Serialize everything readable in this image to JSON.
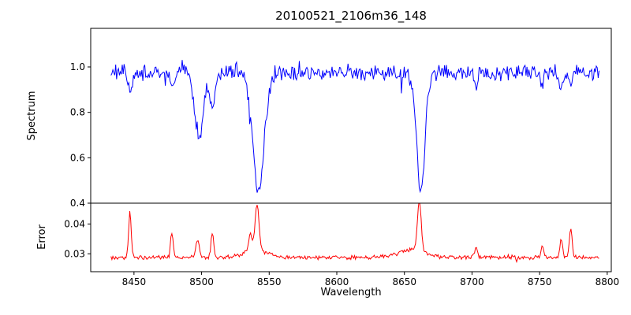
{
  "figure_title": "20100521_2106m36_148",
  "colors": {
    "background": "#ffffff",
    "axes": "#000000",
    "spectrum_line": "#0000ff",
    "error_line": "#ff0000",
    "text": "#000000"
  },
  "chart_data": [
    {
      "type": "line",
      "series_name": "spectrum",
      "title": "20100521_2106m36_148",
      "ylabel": "Spectrum",
      "color": "#0000ff",
      "grid": false,
      "legend": "none",
      "xlim": [
        8418,
        8803
      ],
      "ylim": [
        0.4,
        1.17
      ],
      "yticks": [
        0.4,
        0.6,
        0.8,
        1.0
      ],
      "yticklabels": [
        "0.4",
        "0.6",
        "0.8",
        "1.0"
      ],
      "x_range": [
        8433,
        8794
      ],
      "baseline": 0.975,
      "noise_amplitude": 0.042,
      "absorption_lines": [
        {
          "center": 8447,
          "depth": 0.1,
          "sigma": 1.2
        },
        {
          "center": 8478,
          "depth": 0.07,
          "sigma": 1.2
        },
        {
          "center": 8498,
          "depth": 0.3,
          "sigma": 3.0
        },
        {
          "center": 8508,
          "depth": 0.17,
          "sigma": 2.0
        },
        {
          "center": 8542,
          "depth": 0.52,
          "sigma": 4.2
        },
        {
          "center": 8662,
          "depth": 0.53,
          "sigma": 3.0
        },
        {
          "center": 8703,
          "depth": 0.06,
          "sigma": 1.2
        },
        {
          "center": 8752,
          "depth": 0.06,
          "sigma": 1.0
        },
        {
          "center": 8766,
          "depth": 0.08,
          "sigma": 1.2
        },
        {
          "center": 8773,
          "depth": 0.07,
          "sigma": 1.2
        }
      ]
    },
    {
      "type": "line",
      "series_name": "error",
      "ylabel": "Error",
      "xlabel": "Wavelength",
      "color": "#ff0000",
      "grid": false,
      "legend": "none",
      "xlim": [
        8418,
        8803
      ],
      "ylim": [
        0.024,
        0.047
      ],
      "yticks": [
        0.03,
        0.04
      ],
      "yticklabels": [
        "0.03",
        "0.04"
      ],
      "xticks": [
        8450,
        8500,
        8550,
        8600,
        8650,
        8700,
        8750,
        8800
      ],
      "xticklabels": [
        "8450",
        "8500",
        "8550",
        "8600",
        "8650",
        "8700",
        "8750",
        "8800"
      ],
      "x_range": [
        8433,
        8794
      ],
      "baseline": 0.0288,
      "noise_amplitude": 0.0008,
      "spikes": [
        {
          "center": 8447,
          "peak": 0.0435,
          "sigma": 1.0
        },
        {
          "center": 8478,
          "peak": 0.0368,
          "sigma": 1.0
        },
        {
          "center": 8497,
          "peak": 0.035,
          "sigma": 1.2
        },
        {
          "center": 8508,
          "peak": 0.0372,
          "sigma": 1.0
        },
        {
          "center": 8536,
          "peak": 0.0345,
          "sigma": 1.2
        },
        {
          "center": 8540,
          "peak": 0.0315,
          "sigma": 8.0
        },
        {
          "center": 8541,
          "peak": 0.0438,
          "sigma": 1.4
        },
        {
          "center": 8655,
          "peak": 0.0312,
          "sigma": 10.0
        },
        {
          "center": 8661,
          "peak": 0.0458,
          "sigma": 1.4
        },
        {
          "center": 8703,
          "peak": 0.032,
          "sigma": 1.0
        },
        {
          "center": 8752,
          "peak": 0.033,
          "sigma": 1.0
        },
        {
          "center": 8766,
          "peak": 0.0352,
          "sigma": 1.0
        },
        {
          "center": 8773,
          "peak": 0.0382,
          "sigma": 1.1
        }
      ]
    }
  ]
}
